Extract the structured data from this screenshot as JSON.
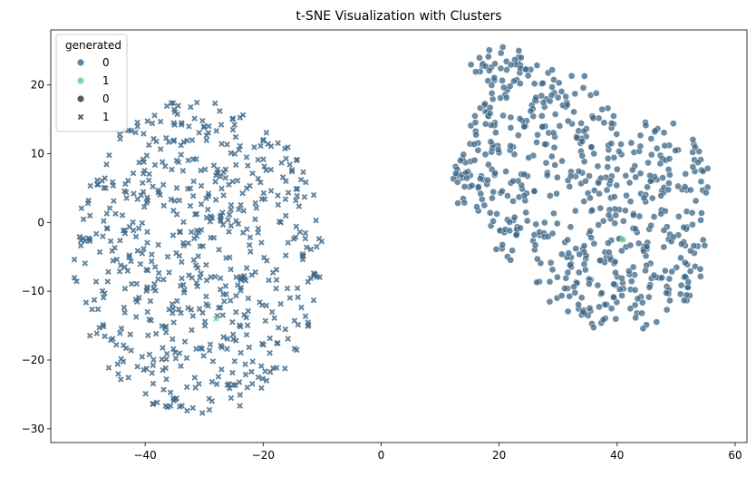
{
  "chart_data": {
    "type": "scatter",
    "title": "t-SNE Visualization with Clusters",
    "xlabel": "",
    "ylabel": "",
    "xlim": [
      -56,
      62
    ],
    "ylim": [
      -32,
      28
    ],
    "x_ticks": [
      -40,
      -20,
      0,
      20,
      40,
      60
    ],
    "y_ticks": [
      -30,
      -20,
      -10,
      0,
      10,
      20
    ],
    "grid": false,
    "legend": {
      "title": "generated",
      "placement": "top-left",
      "hue_entries": [
        {
          "label": "0",
          "color": "#3b6586"
        },
        {
          "label": "1",
          "color": "#5fcf8a"
        }
      ],
      "style_entries": [
        {
          "label": "0",
          "marker": "circle"
        },
        {
          "label": "1",
          "marker": "x"
        }
      ]
    },
    "clusters": [
      {
        "name": "x-marker cluster",
        "marker": "x",
        "color": "#3b6586",
        "approx_center": [
          -31,
          -5
        ],
        "x_range": [
          -52,
          -9
        ],
        "y_range": [
          -29.5,
          18
        ],
        "approx_count": 620
      },
      {
        "name": "circle-marker cluster",
        "marker": "circle",
        "color": "#3b6586",
        "approx_center": [
          36,
          2
        ],
        "x_range": [
          12,
          57
        ],
        "y_range": [
          -19,
          26
        ],
        "approx_count": 620
      }
    ],
    "highlighted_points": [
      {
        "x": -28,
        "y": -14,
        "marker": "x",
        "color": "#5fcf8a"
      },
      {
        "x": 41,
        "y": -2.5,
        "marker": "circle",
        "color": "#5fcf8a"
      }
    ]
  }
}
